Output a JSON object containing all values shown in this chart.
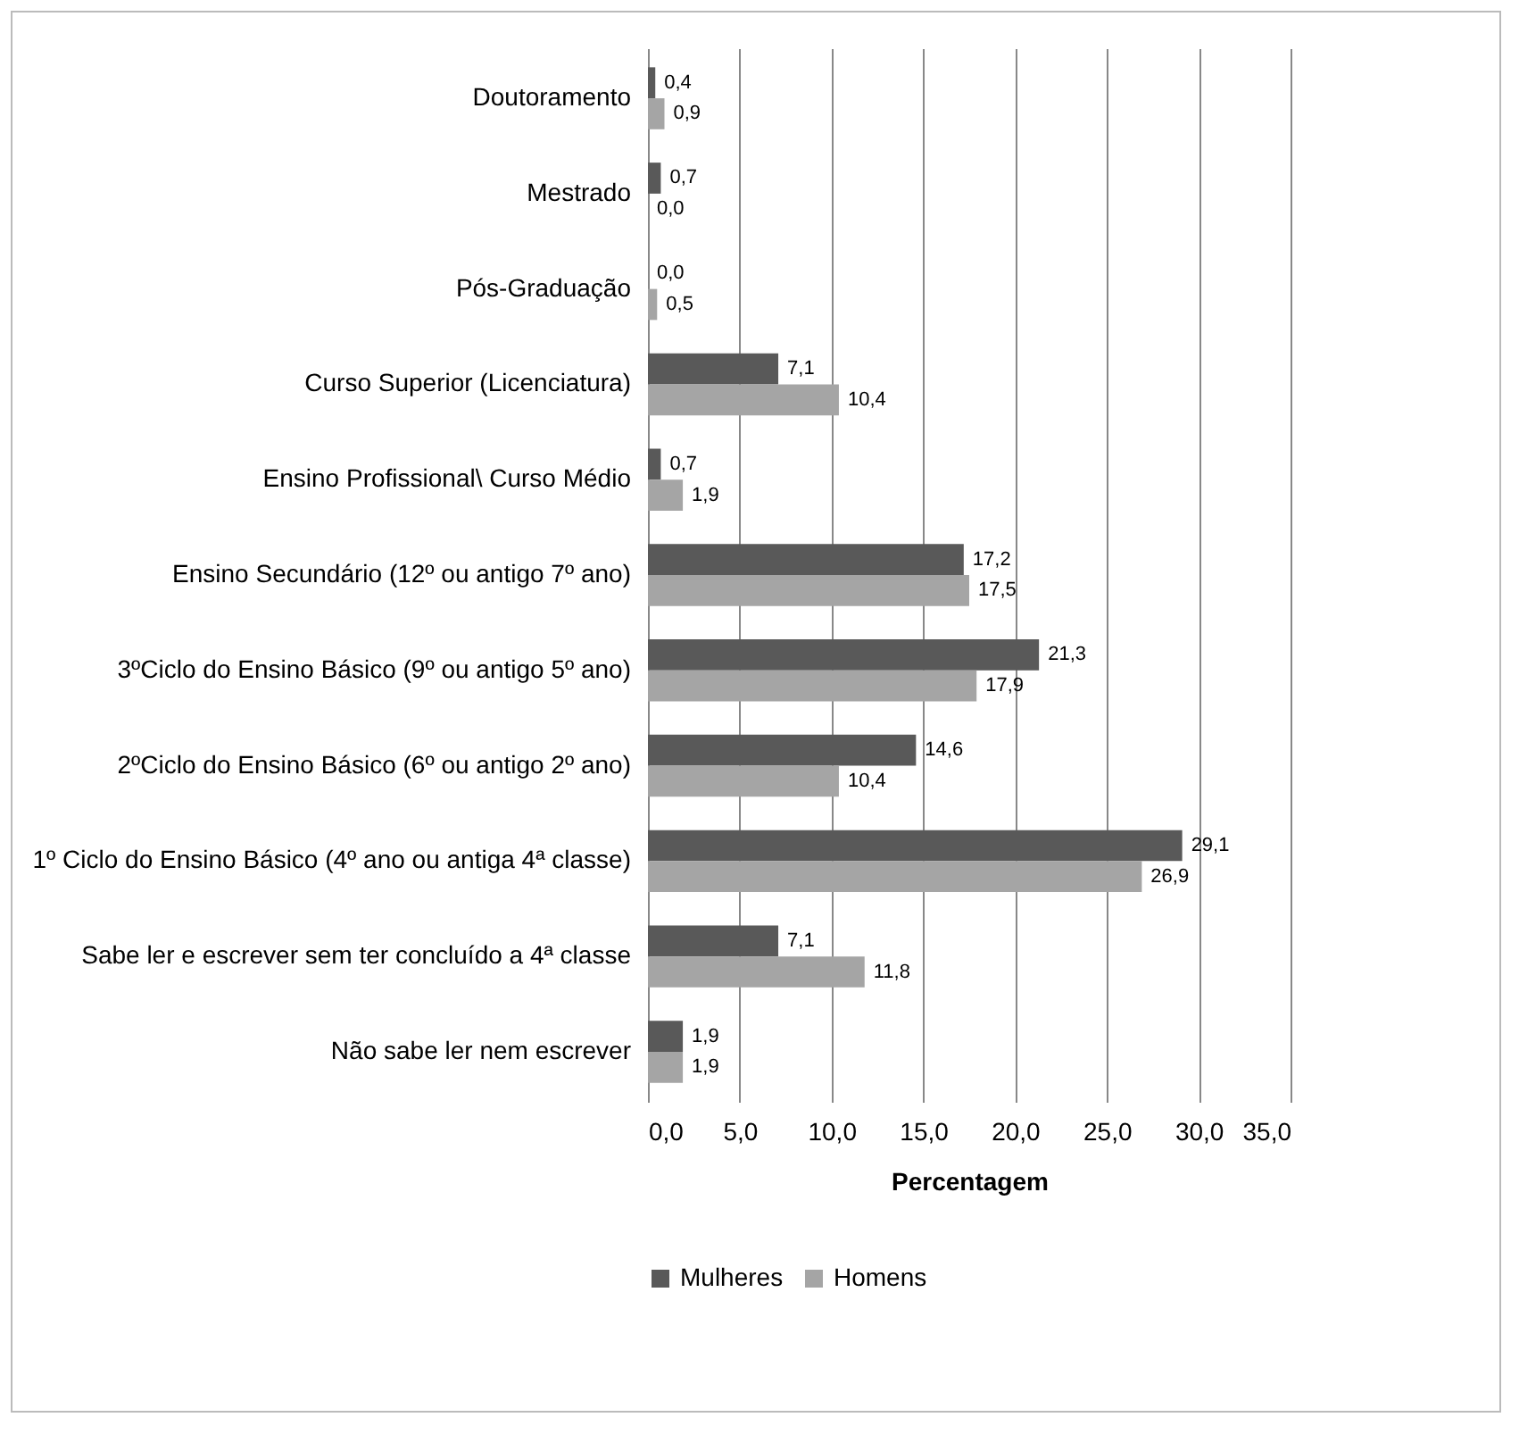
{
  "chart_data": {
    "type": "bar",
    "orientation": "horizontal",
    "xlabel": "Percentagem",
    "categories": [
      "Doutoramento",
      "Mestrado",
      "Pós-Graduação",
      "Curso Superior (Licenciatura)",
      "Ensino Profissional\\ Curso Médio",
      "Ensino Secundário (12º ou antigo 7º ano)",
      "3ºCiclo do Ensino Básico (9º ou antigo 5º ano)",
      "2ºCiclo do Ensino Básico (6º ou antigo 2º ano)",
      "1º Ciclo do Ensino Básico (4º ano ou antiga 4ª classe)",
      "Sabe ler e escrever sem ter concluído a 4ª classe",
      "Não sabe ler nem escrever"
    ],
    "series": [
      {
        "name": "Mulheres",
        "color": "#595959",
        "values": [
          0.4,
          0.7,
          0.0,
          7.1,
          0.7,
          17.2,
          21.3,
          14.6,
          29.1,
          7.1,
          1.9
        ],
        "value_labels": [
          "0,4",
          "0,7",
          "0,0",
          "7,1",
          "0,7",
          "17,2",
          "21,3",
          "14,6",
          "29,1",
          "7,1",
          "1,9"
        ]
      },
      {
        "name": "Homens",
        "color": "#a5a5a5",
        "values": [
          0.9,
          0.0,
          0.5,
          10.4,
          1.9,
          17.5,
          17.9,
          10.4,
          26.9,
          11.8,
          1.9
        ],
        "value_labels": [
          "0,9",
          "0,0",
          "0,5",
          "10,4",
          "1,9",
          "17,5",
          "17,9",
          "10,4",
          "26,9",
          "11,8",
          "1,9"
        ]
      }
    ],
    "xlim": [
      0,
      35
    ],
    "xticks": [
      {
        "value": 0,
        "label": "0,0"
      },
      {
        "value": 5,
        "label": "5,0"
      },
      {
        "value": 10,
        "label": "10,0"
      },
      {
        "value": 15,
        "label": "15,0"
      },
      {
        "value": 20,
        "label": "20,0"
      },
      {
        "value": 25,
        "label": "25,0"
      },
      {
        "value": 30,
        "label": "30,0"
      },
      {
        "value": 35,
        "label": "35,0"
      }
    ],
    "grid": "x",
    "legend": "bottom"
  }
}
